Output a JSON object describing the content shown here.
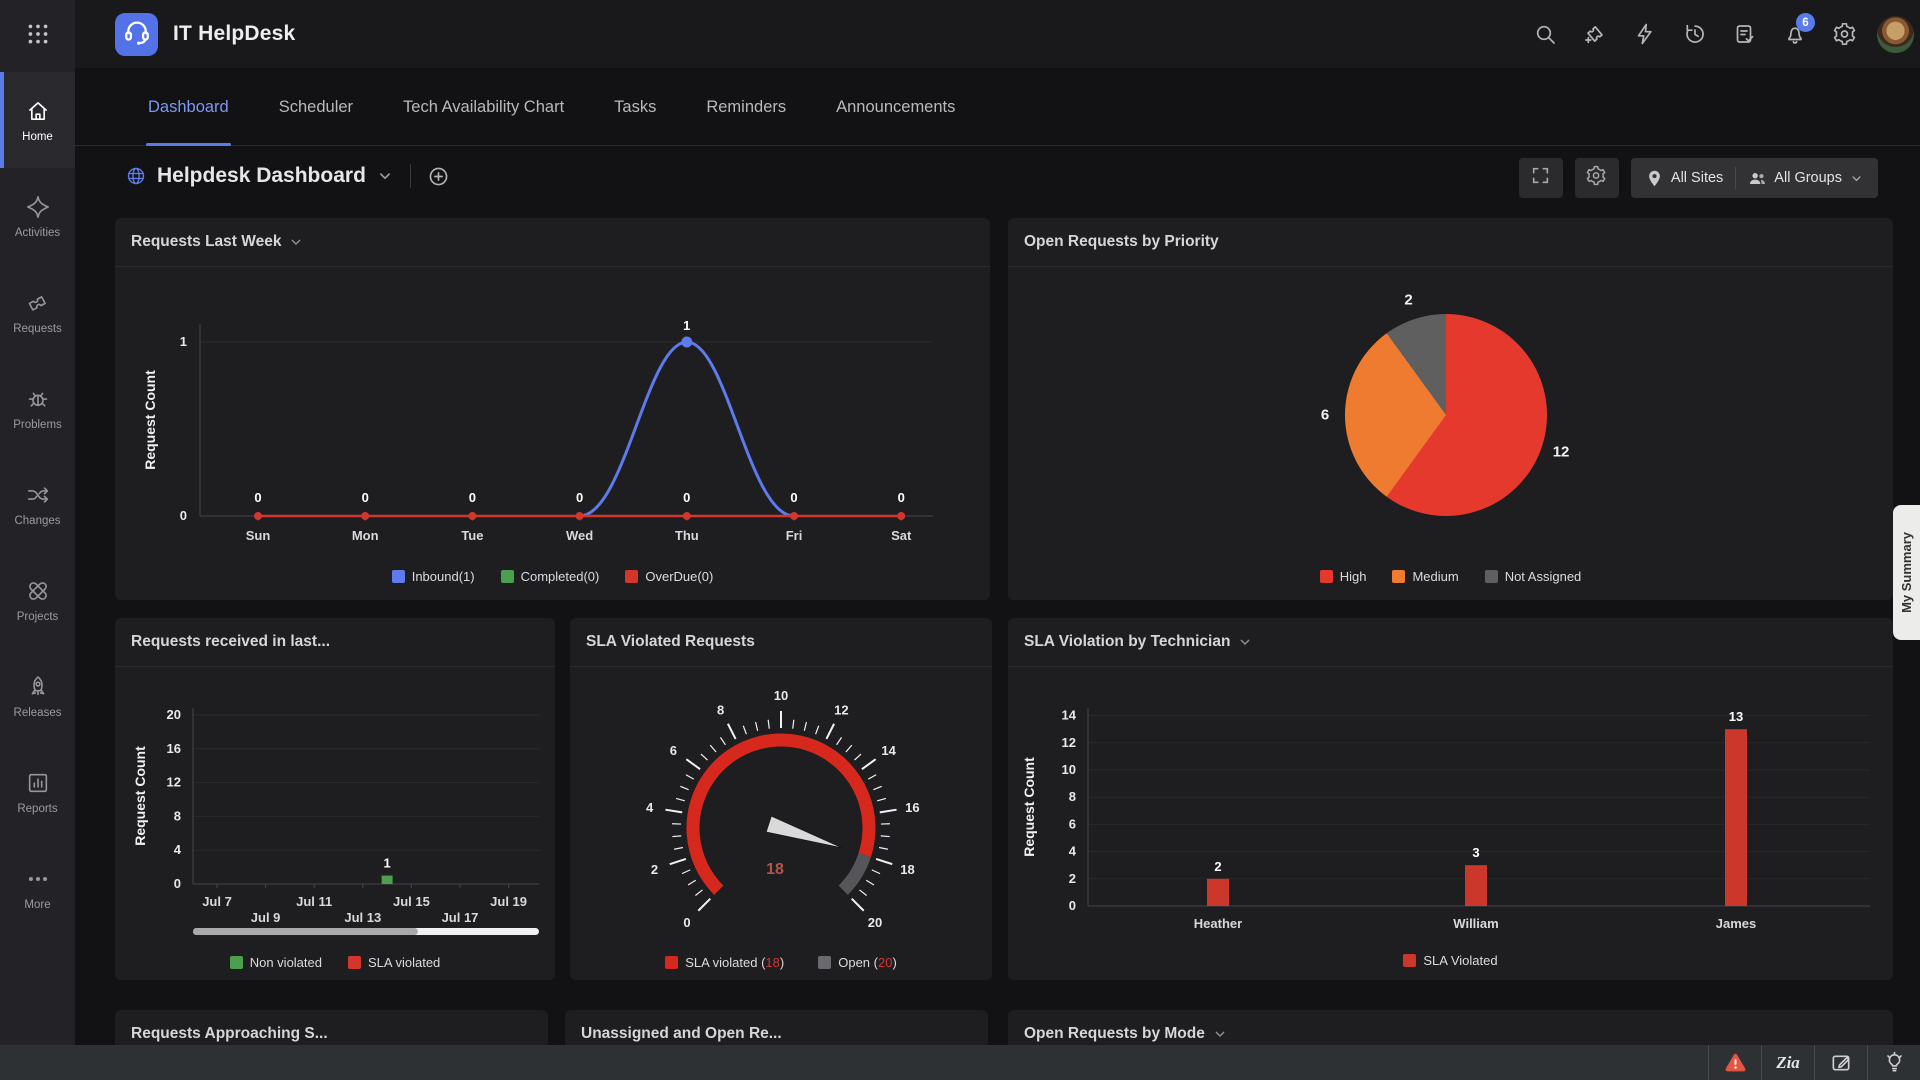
{
  "topbar": {
    "app_title": "IT HelpDesk",
    "notification_count": "6",
    "icons": [
      "search",
      "add-request",
      "quick-actions",
      "history",
      "approvals",
      "notifications",
      "settings"
    ]
  },
  "sidebar": {
    "items": [
      {
        "label": "Home",
        "icon": "home",
        "active": true
      },
      {
        "label": "Activities",
        "icon": "activities",
        "active": false
      },
      {
        "label": "Requests",
        "icon": "requests",
        "active": false
      },
      {
        "label": "Problems",
        "icon": "problems",
        "active": false
      },
      {
        "label": "Changes",
        "icon": "changes",
        "active": false
      },
      {
        "label": "Projects",
        "icon": "projects",
        "active": false
      },
      {
        "label": "Releases",
        "icon": "releases",
        "active": false
      },
      {
        "label": "Reports",
        "icon": "reports",
        "active": false
      },
      {
        "label": "More",
        "icon": "more",
        "active": false
      }
    ]
  },
  "tabs": {
    "items": [
      {
        "label": "Dashboard",
        "active": true
      },
      {
        "label": "Scheduler",
        "active": false
      },
      {
        "label": "Tech Availability Chart",
        "active": false
      },
      {
        "label": "Tasks",
        "active": false
      },
      {
        "label": "Reminders",
        "active": false
      },
      {
        "label": "Announcements",
        "active": false
      }
    ]
  },
  "header": {
    "title": "Helpdesk Dashboard",
    "site_filter": "All Sites",
    "group_filter": "All Groups",
    "icons": [
      "globe",
      "chevron-down",
      "add-dashboard",
      "fullscreen",
      "settings",
      "location-pin",
      "user-group"
    ]
  },
  "my_summary_label": "My Summary",
  "cards_row3": [
    "Requests Approaching S...",
    "Unassigned and Open Re...",
    "Open Requests by Mode"
  ],
  "bottombar": {
    "icons": [
      "alert",
      "zia",
      "compose",
      "suggestions"
    ],
    "zia_label": "Zia"
  },
  "chart_data": [
    {
      "id": "requests-last-week",
      "type": "line",
      "title": "Requests Last Week",
      "ylabel": "Request Count",
      "ylim": [
        0,
        1
      ],
      "yticks": [
        0,
        1
      ],
      "categories": [
        "Sun",
        "Mon",
        "Tue",
        "Wed",
        "Thu",
        "Fri",
        "Sat"
      ],
      "series": [
        {
          "name": "Inbound(1)",
          "color": "#5d7bed",
          "values": [
            0,
            0,
            0,
            0,
            1,
            0,
            0
          ]
        },
        {
          "name": "Completed(0)",
          "color": "#4aa04e",
          "values": [
            0,
            0,
            0,
            0,
            0,
            0,
            0
          ]
        },
        {
          "name": "OverDue(0)",
          "color": "#d2362c",
          "values": [
            0,
            0,
            0,
            0,
            0,
            0,
            0
          ]
        }
      ],
      "legend_position": "bottom",
      "grid": true
    },
    {
      "id": "open-requests-by-priority",
      "type": "pie",
      "title": "Open Requests by Priority",
      "slices": [
        {
          "label": "High",
          "value": 12,
          "color": "#e6392e"
        },
        {
          "label": "Medium",
          "value": 6,
          "color": "#ee7b30"
        },
        {
          "label": "Not Assigned",
          "value": 2,
          "color": "#5f5f5f"
        }
      ],
      "legend_position": "bottom"
    },
    {
      "id": "requests-received-in-last",
      "type": "bar",
      "title": "Requests received in last...",
      "ylabel": "Request Count",
      "ylim": [
        0,
        20
      ],
      "ytick_step": 4,
      "xticks": [
        "Jul 7",
        "Jul 9",
        "Jul 11",
        "Jul 13",
        "Jul 15",
        "Jul 17",
        "Jul 19"
      ],
      "bars": [
        {
          "x_label": "Jul 14",
          "x_index": 3.5,
          "value": 1,
          "color": "#4aa04e"
        }
      ],
      "legend": [
        {
          "label": "Non violated",
          "color": "#4aa04e"
        },
        {
          "label": "SLA violated",
          "color": "#d2362c"
        }
      ],
      "scrollbar_fraction": 0.65,
      "grid": true
    },
    {
      "id": "sla-violated-requests",
      "type": "gauge",
      "title": "SLA Violated Requests",
      "min": 0,
      "max": 20,
      "major_tick": 2,
      "minor_tick": 0.5,
      "value": 18,
      "segments": [
        {
          "from": 0,
          "to": 18,
          "color": "#d7281e"
        },
        {
          "from": 18,
          "to": 20,
          "color": "#56565a"
        }
      ],
      "legend": [
        {
          "label": "SLA violated",
          "num": "18",
          "color": "#d7281e"
        },
        {
          "label": "Open",
          "num": "20",
          "color": "#6a6a6e"
        }
      ]
    },
    {
      "id": "sla-violation-by-technician",
      "type": "bar",
      "title": "SLA Violation by Technician",
      "ylabel": "Request Count",
      "ylim": [
        0,
        14
      ],
      "ytick_step": 2,
      "categories": [
        "Heather",
        "William",
        "James"
      ],
      "values": [
        2,
        3,
        13
      ],
      "color": "#cc372c",
      "legend": [
        {
          "label": "SLA Violated",
          "color": "#cc372c"
        }
      ],
      "grid": true
    }
  ]
}
